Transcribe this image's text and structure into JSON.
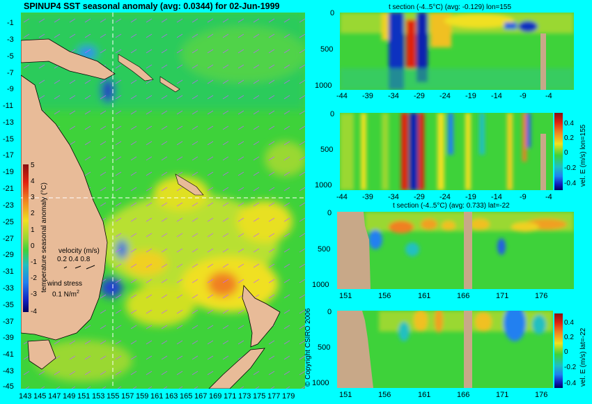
{
  "map": {
    "title": "SPINUP4 SST seasonal anomaly (avg: 0.0344) for 02-Jun-1999",
    "lat_labels": [
      "-1",
      "-3",
      "-5",
      "-7",
      "-9",
      "-11",
      "-13",
      "-15",
      "-17",
      "-19",
      "-21",
      "-23",
      "-25",
      "-27",
      "-29",
      "-31",
      "-33",
      "-35",
      "-37",
      "-39",
      "-41",
      "-43",
      "-45"
    ],
    "lon_labels": [
      "143",
      "145",
      "147",
      "149",
      "151",
      "153",
      "155",
      "157",
      "159",
      "161",
      "163",
      "165",
      "167",
      "169",
      "171",
      "173",
      "175",
      "177",
      "179"
    ],
    "colorbar_label": "temperature seasonal anomaly (°C)",
    "colorbar_ticks": [
      "5",
      "4",
      "3",
      "2",
      "1",
      "0",
      "-1",
      "-2",
      "-3",
      "-4"
    ],
    "velocity_legend": {
      "title": "velocity (m/s)",
      "values": "0.2 0.4 0.8"
    },
    "wind_legend": {
      "title": "wind stress",
      "value": "0.1 N/m",
      "superscript": "2"
    },
    "copyright": "© Copyright CSIRO 2006"
  },
  "panels": {
    "p1": {
      "title": "t section (-4..5°C) (avg: -0.129) lon=155",
      "y_ticks": [
        "0",
        "500",
        "1000"
      ],
      "x_ticks": [
        "-44",
        "-39",
        "-34",
        "-29",
        "-24",
        "-19",
        "-14",
        "-9",
        "-4"
      ]
    },
    "p2": {
      "title": "",
      "side_label": "vel. E (m/s) lon=155",
      "y_ticks": [
        "0",
        "500",
        "1000"
      ],
      "x_ticks": [
        "-44",
        "-39",
        "-34",
        "-29",
        "-24",
        "-19",
        "-14",
        "-9",
        "-4"
      ],
      "cbar_ticks": [
        "0.4",
        "0.2",
        "0",
        "-0.2",
        "-0.4"
      ]
    },
    "p3": {
      "title": "t section (-4..5°C) (avg: 0.733) lat=-22",
      "y_ticks": [
        "0",
        "500",
        "1000"
      ],
      "x_ticks": [
        "151",
        "156",
        "161",
        "166",
        "171",
        "176"
      ]
    },
    "p4": {
      "title": "",
      "side_label": "vel. E (m/s) lat=-22",
      "y_ticks": [
        "0",
        "500",
        "1000"
      ],
      "x_ticks": [
        "151",
        "156",
        "161",
        "166",
        "171",
        "176"
      ],
      "cbar_ticks": [
        "0.4",
        "0.2",
        "0",
        "-0.2",
        "-0.4"
      ]
    }
  },
  "colors": {
    "background": "#00ffff",
    "land": "#e8bb98",
    "section_land": "#c8a888",
    "ocean_base": "#3ed23a",
    "crosshair": "#ffffff"
  }
}
